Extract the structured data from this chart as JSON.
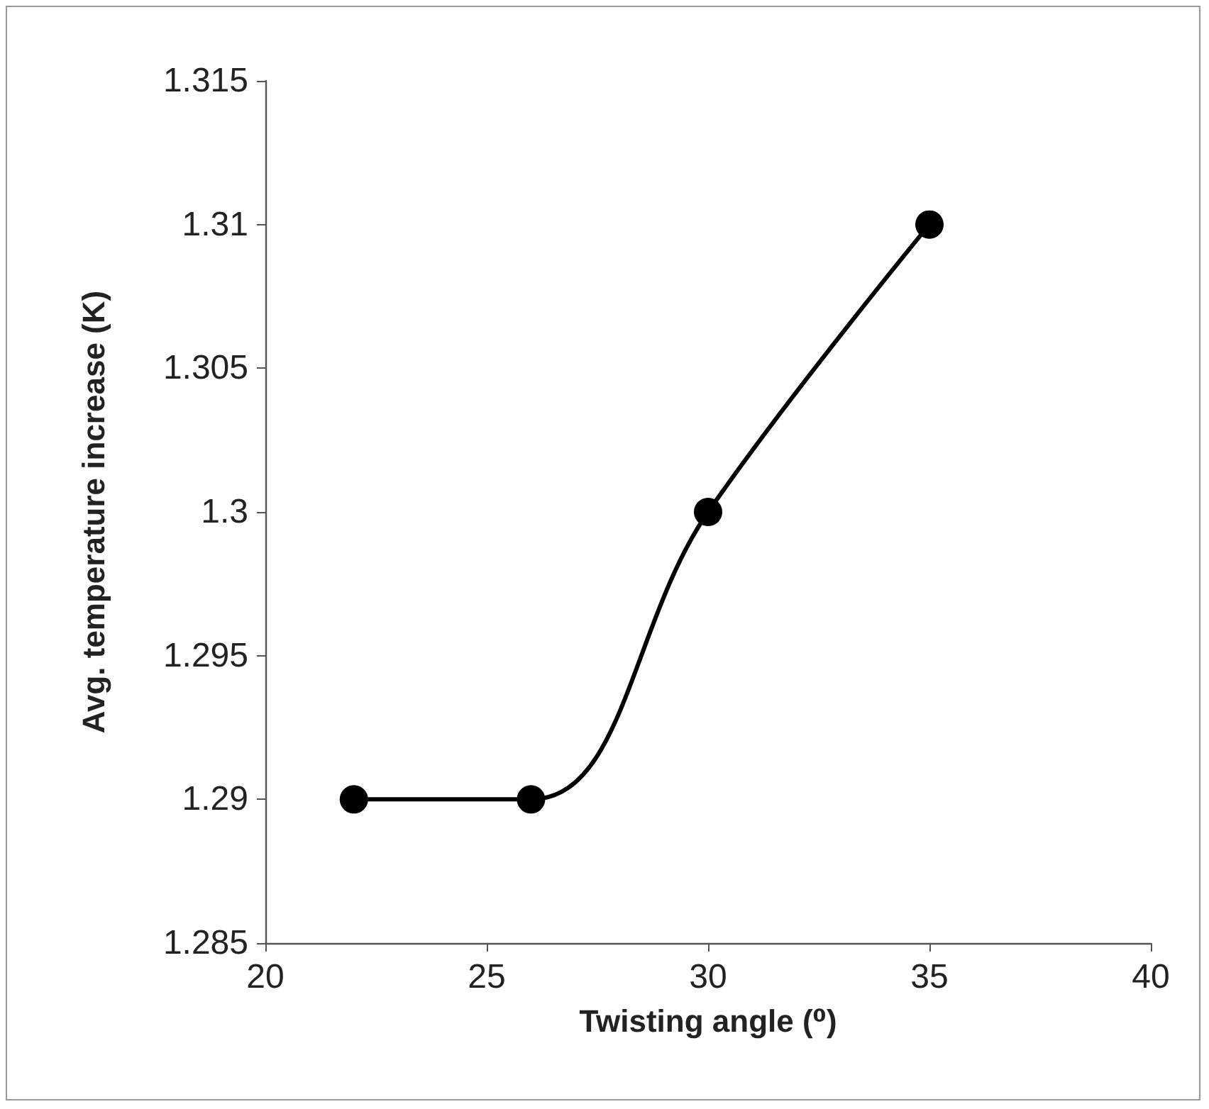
{
  "chart_data": {
    "type": "line",
    "xlabel": "Twisting angle (⁰)",
    "ylabel": "Avg. temperature increase (K)",
    "x": [
      22,
      26,
      30,
      35
    ],
    "series": [
      {
        "color": "#000000",
        "values": [
          1.29,
          1.29,
          1.3,
          1.31
        ]
      }
    ],
    "xlim": [
      20,
      40
    ],
    "xticks": [
      20,
      25,
      30,
      35,
      40
    ],
    "ylim": [
      1.285,
      1.315
    ],
    "yticks": [
      1.285,
      1.29,
      1.295,
      1.3,
      1.305,
      1.31,
      1.315
    ],
    "grid": false,
    "marker": "circle",
    "line_style": "solid"
  }
}
